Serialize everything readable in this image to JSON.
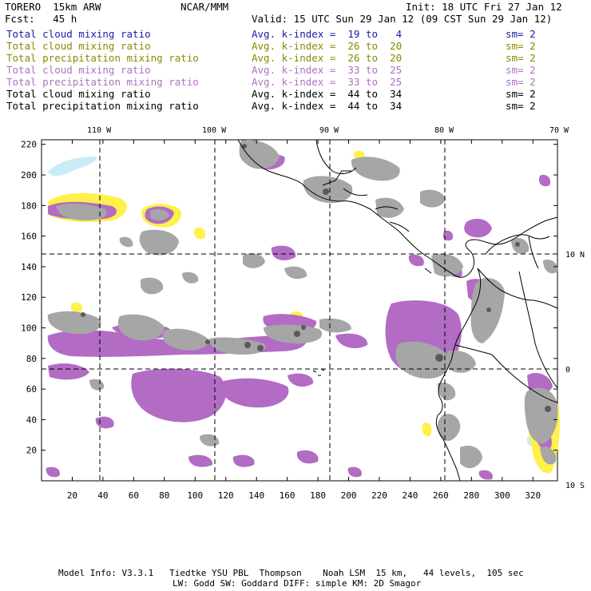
{
  "header": {
    "model": "TORERO  15km ARW",
    "center": "NCAR/MMM",
    "init": "Init: 18 UTC Fri 27 Jan 12",
    "fcst": "Fcst:   45 h",
    "valid": "Valid: 15 UTC Sun 29 Jan 12 (09 CST Sun 29 Jan 12)"
  },
  "legend": [
    {
      "name": "Total cloud mixing ratio",
      "kindex": "Avg. k-index =  19 to   4",
      "sm": "sm= 2",
      "color": "#1a1aa6"
    },
    {
      "name": "Total cloud mixing ratio",
      "kindex": "Avg. k-index =  26 to  20",
      "sm": "sm= 2",
      "color": "#8a8a00"
    },
    {
      "name": "Total precipitation mixing ratio",
      "kindex": "Avg. k-index =  26 to  20",
      "sm": "sm= 2",
      "color": "#8a8a00"
    },
    {
      "name": "Total cloud mixing ratio",
      "kindex": "Avg. k-index =  33 to  25",
      "sm": "sm= 2",
      "color": "#b070c0"
    },
    {
      "name": "Total precipitation mixing ratio",
      "kindex": "Avg. k-index =  33 to  25",
      "sm": "sm= 2",
      "color": "#b070c0"
    },
    {
      "name": "Total cloud mixing ratio",
      "kindex": "Avg. k-index =  44 to  34",
      "sm": "sm= 2",
      "color": "#000000"
    },
    {
      "name": "Total precipitation mixing ratio",
      "kindex": "Avg. k-index =  44 to  34",
      "sm": "sm= 2",
      "color": "#000000"
    }
  ],
  "map": {
    "longitude_labels": [
      "110 W",
      "100 W",
      "90 W",
      "80 W",
      "70 W"
    ],
    "latitude_labels": [
      "10 N",
      "0",
      "10 S"
    ],
    "x_ticks": [
      "20",
      "40",
      "60",
      "80",
      "100",
      "120",
      "140",
      "160",
      "180",
      "200",
      "220",
      "240",
      "260",
      "280",
      "300",
      "320"
    ],
    "y_ticks": [
      "20",
      "40",
      "60",
      "80",
      "100",
      "120",
      "140",
      "160",
      "180",
      "200",
      "220"
    ],
    "colors": {
      "light_cyan": "#c8ecf8",
      "yellow": "#fff04a",
      "purple": "#b26cc4",
      "light_gray": "#a6a6a6",
      "dark_gray": "#5a5a5a",
      "coast": "#000000"
    }
  },
  "footer": {
    "line1": "Model Info: V3.3.1   Tiedtke YSU PBL  Thompson    Noah LSM  15 km,   44 levels,  105 sec",
    "line2": "LW: Godd SW: Goddard DIFF: simple KM: 2D Smagor"
  }
}
